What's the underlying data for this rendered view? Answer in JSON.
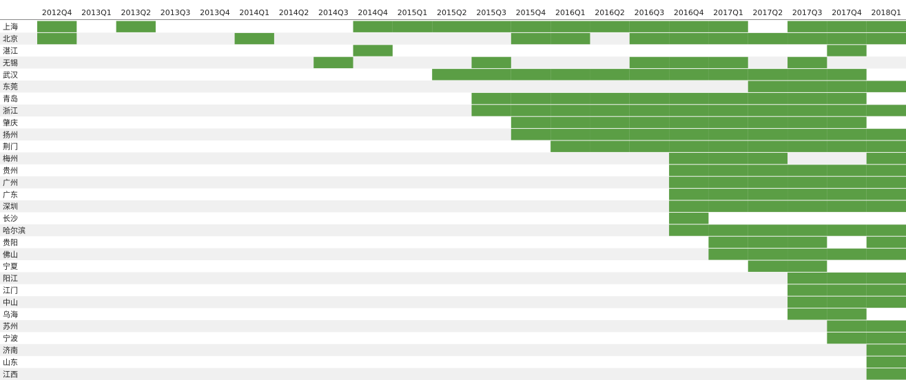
{
  "chart_data": {
    "type": "heatmap",
    "color": "#5b9e45",
    "categories": [
      "2012Q4",
      "2013Q1",
      "2013Q2",
      "2013Q3",
      "2013Q4",
      "2014Q1",
      "2014Q2",
      "2014Q3",
      "2014Q4",
      "2015Q1",
      "2015Q2",
      "2015Q3",
      "2015Q4",
      "2016Q1",
      "2016Q2",
      "2016Q3",
      "2016Q4",
      "2017Q1",
      "2017Q2",
      "2017Q3",
      "2017Q4",
      "2018Q1"
    ],
    "rows": [
      "上海",
      "北京",
      "湛江",
      "无锡",
      "武汉",
      "东莞",
      "青岛",
      "浙江",
      "肇庆",
      "扬州",
      "荆门",
      "梅州",
      "贵州",
      "广州",
      "广东",
      "深圳",
      "长沙",
      "哈尔滨",
      "贵阳",
      "佛山",
      "宁夏",
      "阳江",
      "江门",
      "中山",
      "乌海",
      "苏州",
      "宁波",
      "济南",
      "山东",
      "江西"
    ],
    "values": [
      [
        1,
        0,
        1,
        0,
        0,
        0,
        0,
        0,
        1,
        1,
        1,
        1,
        1,
        1,
        1,
        1,
        1,
        1,
        0,
        1,
        1,
        1
      ],
      [
        1,
        0,
        0,
        0,
        0,
        1,
        0,
        0,
        0,
        0,
        0,
        0,
        1,
        1,
        0,
        1,
        1,
        1,
        1,
        1,
        1,
        1
      ],
      [
        0,
        0,
        0,
        0,
        0,
        0,
        0,
        0,
        1,
        0,
        0,
        0,
        0,
        0,
        0,
        0,
        0,
        0,
        0,
        0,
        1,
        0
      ],
      [
        0,
        0,
        0,
        0,
        0,
        0,
        0,
        1,
        0,
        0,
        0,
        1,
        0,
        0,
        0,
        1,
        1,
        1,
        0,
        1,
        0,
        0
      ],
      [
        0,
        0,
        0,
        0,
        0,
        0,
        0,
        0,
        0,
        0,
        1,
        1,
        1,
        1,
        1,
        1,
        1,
        1,
        1,
        1,
        1,
        0
      ],
      [
        0,
        0,
        0,
        0,
        0,
        0,
        0,
        0,
        0,
        0,
        0,
        0,
        0,
        0,
        0,
        0,
        0,
        0,
        1,
        1,
        1,
        1
      ],
      [
        0,
        0,
        0,
        0,
        0,
        0,
        0,
        0,
        0,
        0,
        0,
        1,
        1,
        1,
        1,
        1,
        1,
        1,
        1,
        1,
        1,
        0
      ],
      [
        0,
        0,
        0,
        0,
        0,
        0,
        0,
        0,
        0,
        0,
        0,
        1,
        1,
        1,
        1,
        1,
        1,
        1,
        1,
        1,
        1,
        1
      ],
      [
        0,
        0,
        0,
        0,
        0,
        0,
        0,
        0,
        0,
        0,
        0,
        0,
        1,
        1,
        1,
        1,
        1,
        1,
        1,
        1,
        1,
        0
      ],
      [
        0,
        0,
        0,
        0,
        0,
        0,
        0,
        0,
        0,
        0,
        0,
        0,
        1,
        1,
        1,
        1,
        1,
        1,
        1,
        1,
        1,
        1
      ],
      [
        0,
        0,
        0,
        0,
        0,
        0,
        0,
        0,
        0,
        0,
        0,
        0,
        0,
        1,
        1,
        1,
        1,
        1,
        1,
        1,
        1,
        1
      ],
      [
        0,
        0,
        0,
        0,
        0,
        0,
        0,
        0,
        0,
        0,
        0,
        0,
        0,
        0,
        0,
        0,
        1,
        1,
        1,
        0,
        0,
        1
      ],
      [
        0,
        0,
        0,
        0,
        0,
        0,
        0,
        0,
        0,
        0,
        0,
        0,
        0,
        0,
        0,
        0,
        1,
        1,
        1,
        1,
        1,
        1
      ],
      [
        0,
        0,
        0,
        0,
        0,
        0,
        0,
        0,
        0,
        0,
        0,
        0,
        0,
        0,
        0,
        0,
        1,
        1,
        1,
        1,
        1,
        1
      ],
      [
        0,
        0,
        0,
        0,
        0,
        0,
        0,
        0,
        0,
        0,
        0,
        0,
        0,
        0,
        0,
        0,
        1,
        1,
        1,
        1,
        1,
        1
      ],
      [
        0,
        0,
        0,
        0,
        0,
        0,
        0,
        0,
        0,
        0,
        0,
        0,
        0,
        0,
        0,
        0,
        1,
        1,
        1,
        1,
        1,
        1
      ],
      [
        0,
        0,
        0,
        0,
        0,
        0,
        0,
        0,
        0,
        0,
        0,
        0,
        0,
        0,
        0,
        0,
        1,
        0,
        0,
        0,
        0,
        0
      ],
      [
        0,
        0,
        0,
        0,
        0,
        0,
        0,
        0,
        0,
        0,
        0,
        0,
        0,
        0,
        0,
        0,
        1,
        1,
        1,
        1,
        1,
        1
      ],
      [
        0,
        0,
        0,
        0,
        0,
        0,
        0,
        0,
        0,
        0,
        0,
        0,
        0,
        0,
        0,
        0,
        0,
        1,
        1,
        1,
        0,
        1
      ],
      [
        0,
        0,
        0,
        0,
        0,
        0,
        0,
        0,
        0,
        0,
        0,
        0,
        0,
        0,
        0,
        0,
        0,
        1,
        1,
        1,
        1,
        1
      ],
      [
        0,
        0,
        0,
        0,
        0,
        0,
        0,
        0,
        0,
        0,
        0,
        0,
        0,
        0,
        0,
        0,
        0,
        0,
        1,
        1,
        0,
        0
      ],
      [
        0,
        0,
        0,
        0,
        0,
        0,
        0,
        0,
        0,
        0,
        0,
        0,
        0,
        0,
        0,
        0,
        0,
        0,
        0,
        1,
        1,
        1
      ],
      [
        0,
        0,
        0,
        0,
        0,
        0,
        0,
        0,
        0,
        0,
        0,
        0,
        0,
        0,
        0,
        0,
        0,
        0,
        0,
        1,
        1,
        1
      ],
      [
        0,
        0,
        0,
        0,
        0,
        0,
        0,
        0,
        0,
        0,
        0,
        0,
        0,
        0,
        0,
        0,
        0,
        0,
        0,
        1,
        1,
        1
      ],
      [
        0,
        0,
        0,
        0,
        0,
        0,
        0,
        0,
        0,
        0,
        0,
        0,
        0,
        0,
        0,
        0,
        0,
        0,
        0,
        1,
        1,
        0
      ],
      [
        0,
        0,
        0,
        0,
        0,
        0,
        0,
        0,
        0,
        0,
        0,
        0,
        0,
        0,
        0,
        0,
        0,
        0,
        0,
        0,
        1,
        1
      ],
      [
        0,
        0,
        0,
        0,
        0,
        0,
        0,
        0,
        0,
        0,
        0,
        0,
        0,
        0,
        0,
        0,
        0,
        0,
        0,
        0,
        1,
        1
      ],
      [
        0,
        0,
        0,
        0,
        0,
        0,
        0,
        0,
        0,
        0,
        0,
        0,
        0,
        0,
        0,
        0,
        0,
        0,
        0,
        0,
        0,
        1
      ],
      [
        0,
        0,
        0,
        0,
        0,
        0,
        0,
        0,
        0,
        0,
        0,
        0,
        0,
        0,
        0,
        0,
        0,
        0,
        0,
        0,
        0,
        1
      ],
      [
        0,
        0,
        0,
        0,
        0,
        0,
        0,
        0,
        0,
        0,
        0,
        0,
        0,
        0,
        0,
        0,
        0,
        0,
        0,
        0,
        0,
        1
      ]
    ]
  }
}
